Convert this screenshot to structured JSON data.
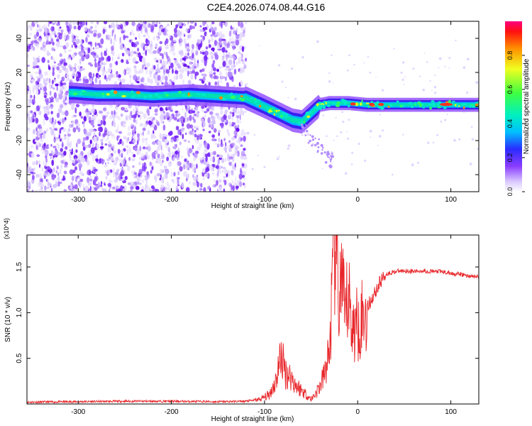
{
  "title": "C2E4.2026.074.08.44.G16",
  "chart_data": [
    {
      "type": "heatmap",
      "xlabel": "Height of straight line (km)",
      "ylabel": "Frequency (Hz)",
      "xlim": [
        -355,
        130
      ],
      "ylim": [
        -50,
        50
      ],
      "xticks": [
        -300,
        -200,
        -100,
        0,
        100
      ],
      "yticks": [
        -40,
        -20,
        0,
        20,
        40
      ],
      "colorbar": {
        "label": "Normalized spectral amplitude",
        "range": [
          0,
          1
        ],
        "ticks": [
          "0.0",
          "0.2",
          "0.4",
          "0.6",
          "0.8"
        ]
      },
      "ridge": {
        "x": [
          -305,
          -280,
          -250,
          -220,
          -180,
          -150,
          -120,
          -100,
          -85,
          -70,
          -60,
          -50,
          -40,
          -30,
          -10,
          10,
          50,
          90,
          130
        ],
        "y": [
          8,
          7,
          7,
          6,
          7,
          6,
          5,
          0,
          -4,
          -8,
          -9,
          -4,
          1,
          2,
          2,
          1,
          1,
          1,
          1
        ]
      }
    },
    {
      "type": "line",
      "xlabel": "Height of straight line (km)",
      "ylabel": "SNR (10 * v/v)",
      "y_multiplier": "(x10^4)",
      "xlim": [
        -355,
        130
      ],
      "ylim": [
        0,
        1.85
      ],
      "xticks": [
        -300,
        -200,
        -100,
        0,
        100
      ],
      "yticks": [
        "0.5",
        "1.0",
        "1.5"
      ],
      "series": [
        {
          "color": "#e8262a",
          "x": [
            -355,
            -300,
            -250,
            -200,
            -150,
            -120,
            -105,
            -95,
            -88,
            -82,
            -78,
            -72,
            -66,
            -60,
            -55,
            -50,
            -45,
            -40,
            -35,
            -30,
            -27,
            -24,
            -20,
            -17,
            -14,
            -10,
            -5,
            0,
            5,
            10,
            15,
            20,
            25,
            30,
            40,
            50,
            60,
            70,
            80,
            90,
            100,
            110,
            120,
            130
          ],
          "y": [
            0.02,
            0.025,
            0.03,
            0.03,
            0.025,
            0.03,
            0.05,
            0.1,
            0.25,
            0.55,
            0.35,
            0.3,
            0.2,
            0.15,
            0.1,
            0.05,
            0.12,
            0.2,
            0.35,
            0.6,
            1.3,
            1.85,
            1.1,
            1.4,
            0.9,
            1.2,
            0.8,
            0.9,
            0.95,
            1.05,
            1.15,
            1.25,
            1.35,
            1.42,
            1.45,
            1.46,
            1.45,
            1.46,
            1.45,
            1.45,
            1.43,
            1.42,
            1.4,
            1.39
          ]
        }
      ]
    }
  ]
}
